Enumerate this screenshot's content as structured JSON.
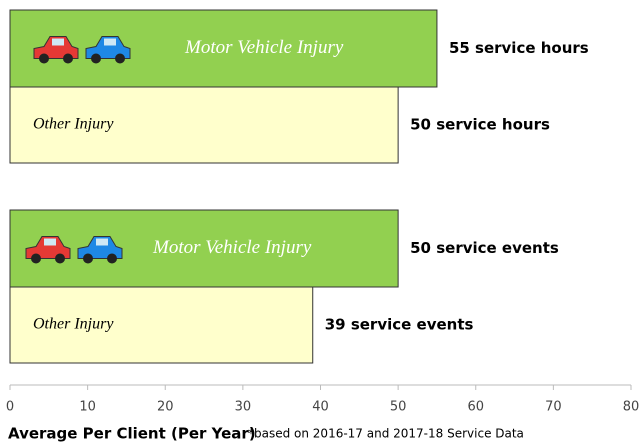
{
  "chart_data": {
    "type": "bar",
    "orientation": "horizontal",
    "categories": [
      null,
      null
    ],
    "series": [
      {
        "name": "Motor Vehicle Injury",
        "color": "#92d050",
        "values": [
          55,
          50
        ],
        "value_labels": [
          "55 service hours",
          "50 service events"
        ]
      },
      {
        "name": "Other Injury",
        "color": "#ffffcc",
        "values": [
          50,
          39
        ],
        "value_labels": [
          "50 service hours",
          "39 service events"
        ]
      }
    ],
    "xlim": [
      0,
      80
    ],
    "xticks": [
      0,
      10,
      20,
      30,
      40,
      50,
      60,
      70,
      80
    ],
    "x_label": "Average Per Client (Per Year)",
    "note": "*based on 2016-17 and 2017-18 Service Data",
    "grid": false
  }
}
